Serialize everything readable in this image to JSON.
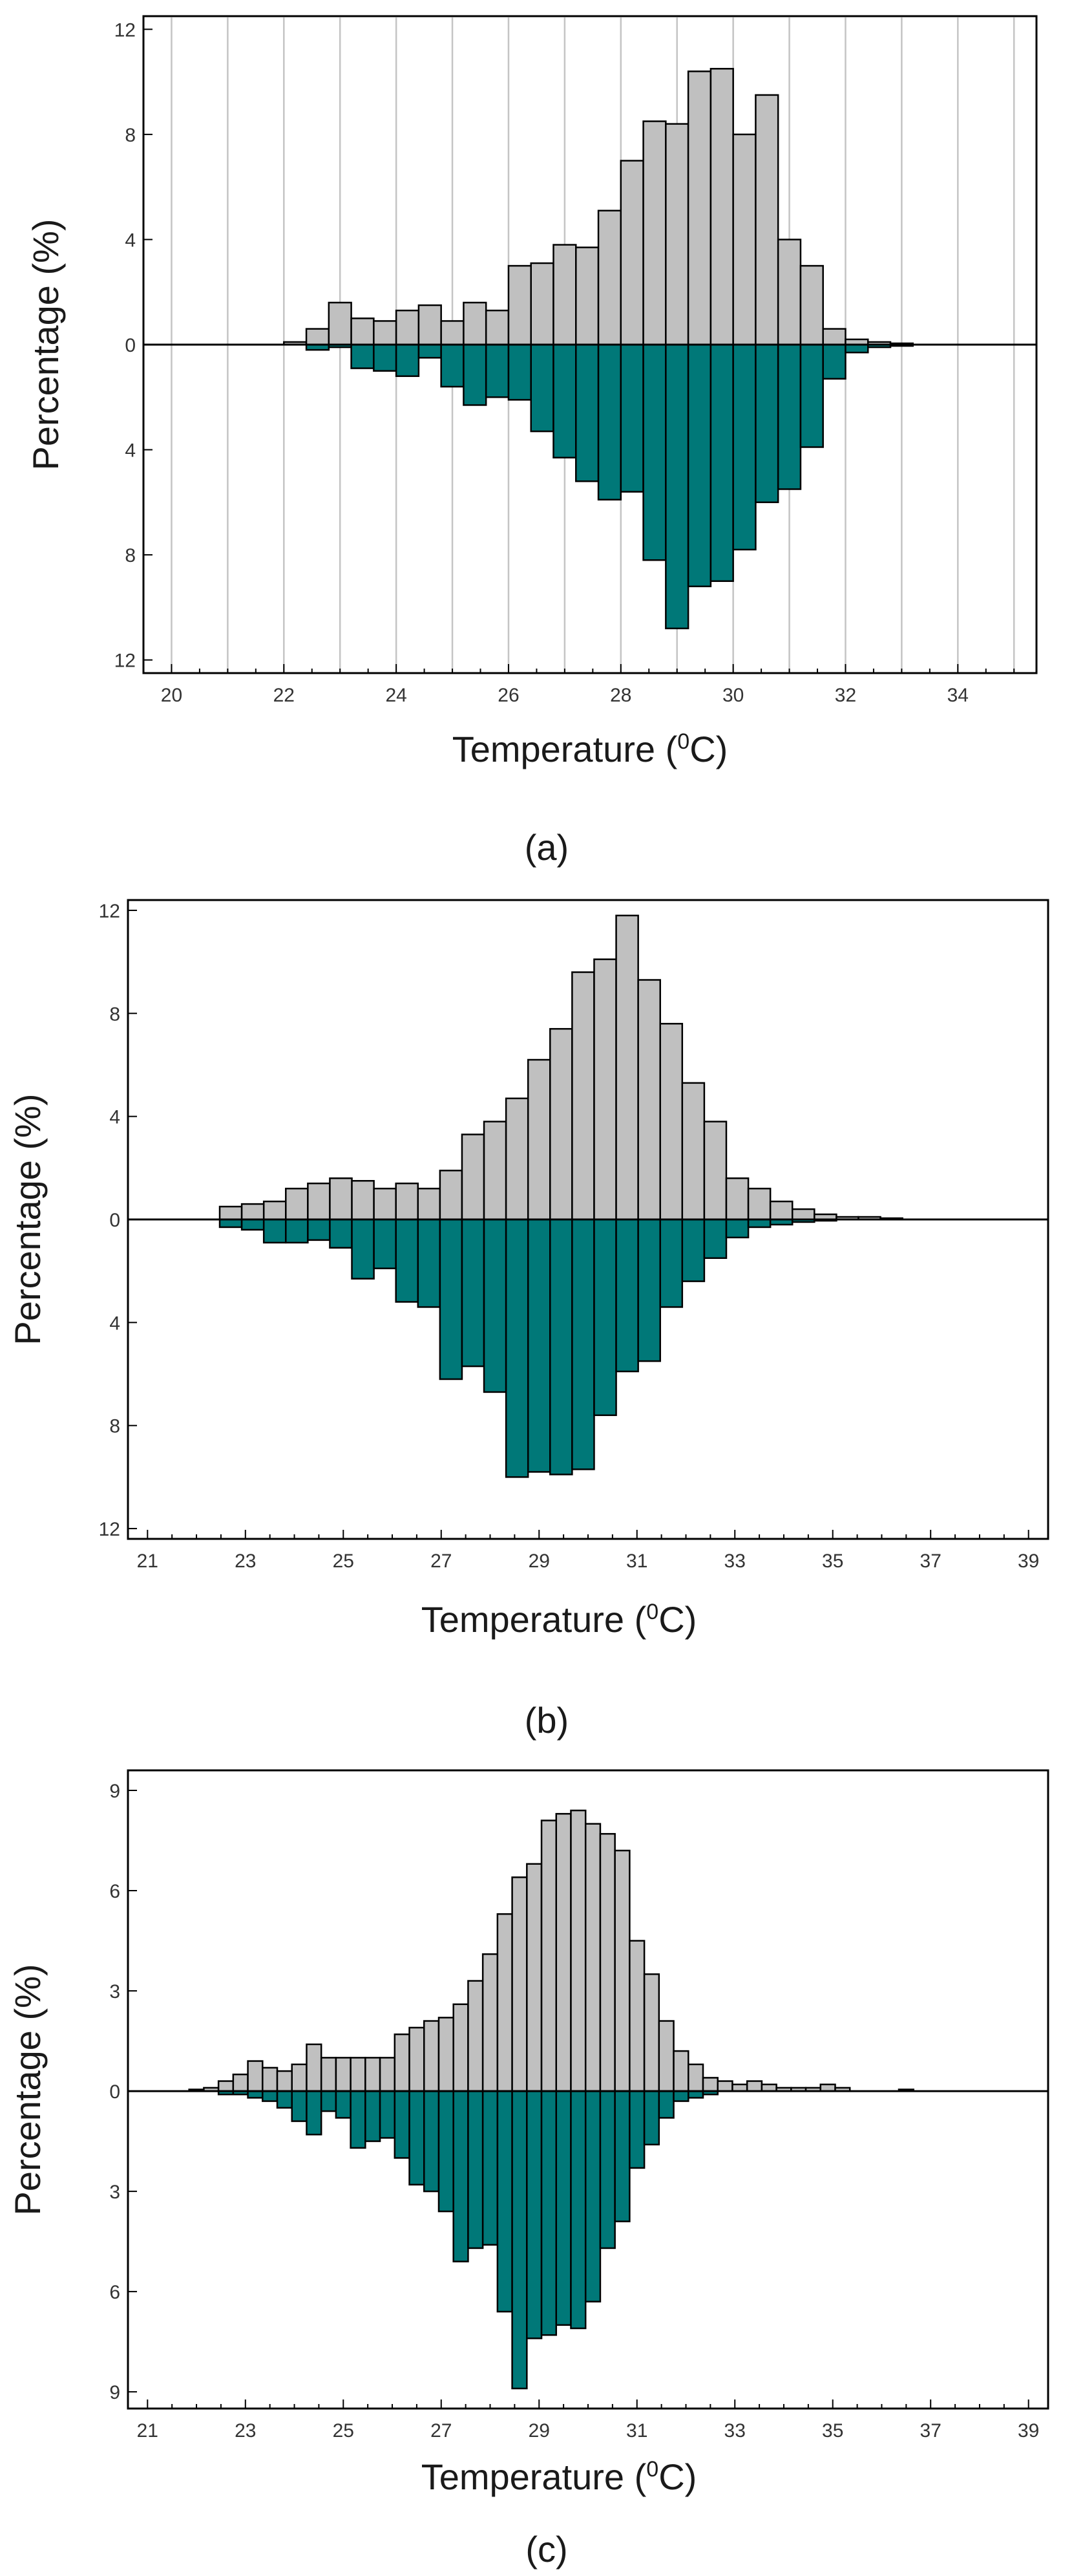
{
  "colors": {
    "upper_bars": "#c0c0c0",
    "lower_bars": "#007878",
    "grid": "#c4c4c4",
    "axis": "#000000"
  },
  "chart_data": [
    {
      "type": "bar",
      "panel_label": "(a)",
      "xlabel_main": "Temperature (",
      "xlabel_sup": "0",
      "xlabel_end": "C)",
      "ylabel": "Percentage (%)",
      "xlim": [
        19.5,
        35.4
      ],
      "ylim": [
        -12.5,
        12.5
      ],
      "xticks": [
        20,
        22,
        24,
        26,
        28,
        30,
        32,
        34
      ],
      "yticks": [
        12,
        8,
        4,
        0,
        4,
        8,
        12
      ],
      "ytick_values": [
        12,
        8,
        4,
        0,
        -4,
        -8,
        -12
      ],
      "vertical_grid": true,
      "bin_width": 0.4,
      "series": [
        {
          "name": "upper",
          "position": "above",
          "x": [
            22.2,
            22.6,
            23.0,
            23.4,
            23.8,
            24.2,
            24.6,
            25.0,
            25.4,
            25.8,
            26.2,
            26.6,
            27.0,
            27.4,
            27.8,
            28.2,
            28.6,
            29.0,
            29.4,
            29.8,
            30.2,
            30.6,
            31.0,
            31.4,
            31.8,
            32.2,
            32.6,
            33.0
          ],
          "values": [
            0.1,
            0.6,
            1.6,
            1.0,
            0.9,
            1.3,
            1.5,
            0.9,
            1.6,
            1.3,
            3.0,
            3.1,
            3.8,
            3.7,
            5.1,
            7.0,
            8.5,
            8.4,
            10.4,
            10.5,
            8.0,
            9.5,
            4.0,
            3.0,
            0.6,
            0.2,
            0.1,
            0.05
          ]
        },
        {
          "name": "lower",
          "position": "below",
          "x": [
            22.2,
            22.6,
            23.0,
            23.4,
            23.8,
            24.2,
            24.6,
            25.0,
            25.4,
            25.8,
            26.2,
            26.6,
            27.0,
            27.4,
            27.8,
            28.2,
            28.6,
            29.0,
            29.4,
            29.8,
            30.2,
            30.6,
            31.0,
            31.4,
            31.8,
            32.2,
            32.6,
            33.0
          ],
          "values": [
            0.0,
            0.2,
            0.1,
            0.9,
            1.0,
            1.2,
            0.5,
            1.6,
            2.3,
            2.0,
            2.1,
            3.3,
            4.3,
            5.2,
            5.9,
            5.6,
            8.2,
            10.8,
            9.2,
            9.0,
            7.8,
            6.0,
            5.5,
            3.9,
            1.3,
            0.3,
            0.1,
            0.05
          ]
        }
      ]
    },
    {
      "type": "bar",
      "panel_label": "(b)",
      "xlabel_main": "Temperature (",
      "xlabel_sup": "0",
      "xlabel_end": "C)",
      "ylabel": "Percentage (%)",
      "xlim": [
        20.6,
        39.4
      ],
      "ylim": [
        -12.4,
        12.4
      ],
      "xticks": [
        21,
        23,
        25,
        27,
        29,
        31,
        33,
        35,
        37,
        39
      ],
      "yticks": [
        12,
        8,
        4,
        0,
        4,
        8,
        12
      ],
      "ytick_values": [
        12,
        8,
        4,
        0,
        -4,
        -8,
        -12
      ],
      "vertical_grid": false,
      "bin_width": 0.45,
      "series": [
        {
          "name": "upper",
          "position": "above",
          "x": [
            22.7,
            23.15,
            23.6,
            24.05,
            24.5,
            24.95,
            25.4,
            25.85,
            26.3,
            26.75,
            27.2,
            27.65,
            28.1,
            28.55,
            29.0,
            29.45,
            29.9,
            30.35,
            30.8,
            31.25,
            31.7,
            32.15,
            32.6,
            33.05,
            33.5,
            33.95,
            34.4,
            34.85,
            35.3,
            35.75,
            36.2
          ],
          "values": [
            0.5,
            0.6,
            0.7,
            1.2,
            1.4,
            1.6,
            1.5,
            1.2,
            1.4,
            1.2,
            1.9,
            3.3,
            3.8,
            4.7,
            6.2,
            7.4,
            9.6,
            10.1,
            11.8,
            9.3,
            7.6,
            5.3,
            3.8,
            1.6,
            1.2,
            0.7,
            0.4,
            0.2,
            0.1,
            0.1,
            0.05
          ]
        },
        {
          "name": "lower",
          "position": "below",
          "x": [
            22.7,
            23.15,
            23.6,
            24.05,
            24.5,
            24.95,
            25.4,
            25.85,
            26.3,
            26.75,
            27.2,
            27.65,
            28.1,
            28.55,
            29.0,
            29.45,
            29.9,
            30.35,
            30.8,
            31.25,
            31.7,
            32.15,
            32.6,
            33.05,
            33.5,
            33.95,
            34.4,
            34.85,
            35.3,
            35.75,
            36.2
          ],
          "values": [
            0.3,
            0.4,
            0.9,
            0.9,
            0.8,
            1.1,
            2.3,
            1.9,
            3.2,
            3.4,
            6.2,
            5.7,
            6.7,
            10.0,
            9.8,
            9.9,
            9.7,
            7.6,
            5.9,
            5.5,
            3.4,
            2.4,
            1.5,
            0.7,
            0.3,
            0.2,
            0.1,
            0.05,
            0.0,
            0.0,
            0.0
          ]
        }
      ]
    },
    {
      "type": "bar",
      "panel_label": "(c)",
      "xlabel_main": "Temperature (",
      "xlabel_sup": "0",
      "xlabel_end": "C)",
      "ylabel": "Percentage (%)",
      "xlim": [
        20.6,
        39.4
      ],
      "ylim": [
        -9.5,
        9.6
      ],
      "xticks": [
        21,
        23,
        25,
        27,
        29,
        31,
        33,
        35,
        37,
        39
      ],
      "yticks": [
        9,
        6,
        3,
        0,
        3,
        6,
        9
      ],
      "ytick_values": [
        9,
        6,
        3,
        0,
        -3,
        -6,
        -9
      ],
      "vertical_grid": false,
      "bin_width": 0.3,
      "series": [
        {
          "name": "upper",
          "position": "above",
          "x": [
            22.0,
            22.3,
            22.6,
            22.9,
            23.2,
            23.5,
            23.8,
            24.1,
            24.4,
            24.7,
            25.0,
            25.3,
            25.6,
            25.9,
            26.2,
            26.5,
            26.8,
            27.1,
            27.4,
            27.7,
            28.0,
            28.3,
            28.6,
            28.9,
            29.2,
            29.5,
            29.8,
            30.1,
            30.4,
            30.7,
            31.0,
            31.3,
            31.6,
            31.9,
            32.2,
            32.5,
            32.8,
            33.1,
            33.4,
            33.7,
            34.0,
            34.3,
            34.6,
            34.9,
            35.2,
            36.5
          ],
          "values": [
            0.05,
            0.1,
            0.3,
            0.5,
            0.9,
            0.7,
            0.6,
            0.8,
            1.4,
            1.0,
            1.0,
            1.0,
            1.0,
            1.0,
            1.7,
            1.9,
            2.1,
            2.2,
            2.6,
            3.3,
            4.1,
            5.3,
            6.4,
            6.8,
            8.1,
            8.3,
            8.4,
            8.0,
            7.7,
            7.2,
            4.5,
            3.5,
            2.1,
            1.2,
            0.8,
            0.4,
            0.3,
            0.2,
            0.3,
            0.2,
            0.1,
            0.1,
            0.1,
            0.2,
            0.1,
            0.05
          ]
        },
        {
          "name": "lower",
          "position": "below",
          "x": [
            22.0,
            22.3,
            22.6,
            22.9,
            23.2,
            23.5,
            23.8,
            24.1,
            24.4,
            24.7,
            25.0,
            25.3,
            25.6,
            25.9,
            26.2,
            26.5,
            26.8,
            27.1,
            27.4,
            27.7,
            28.0,
            28.3,
            28.6,
            28.9,
            29.2,
            29.5,
            29.8,
            30.1,
            30.4,
            30.7,
            31.0,
            31.3,
            31.6,
            31.9,
            32.2,
            32.5,
            32.8,
            33.1,
            33.4,
            33.7,
            34.0,
            34.3,
            34.6,
            34.9,
            35.2,
            36.5
          ],
          "values": [
            0.0,
            0.0,
            0.1,
            0.1,
            0.2,
            0.3,
            0.5,
            0.9,
            1.3,
            0.6,
            0.8,
            1.7,
            1.5,
            1.4,
            2.0,
            2.8,
            3.0,
            3.6,
            5.1,
            4.7,
            4.6,
            6.6,
            8.9,
            7.4,
            7.3,
            7.0,
            7.1,
            6.3,
            4.7,
            3.9,
            2.3,
            1.6,
            0.8,
            0.3,
            0.2,
            0.1,
            0.0,
            0.0,
            0.0,
            0.0,
            0.0,
            0.0,
            0.0,
            0.0,
            0.0,
            0.0
          ]
        }
      ]
    }
  ]
}
